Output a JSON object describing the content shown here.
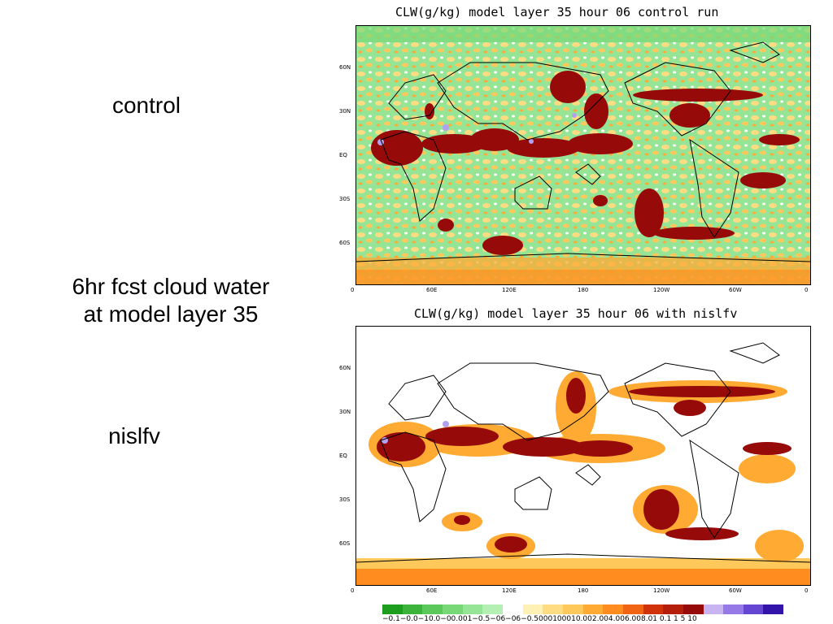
{
  "slide": {
    "label_control": "control",
    "caption_line1": "6hr fcst cloud water",
    "caption_line2": "at model layer 35",
    "label_nislfv": "nislfv"
  },
  "maps": [
    {
      "title": "CLW(g/kg) model layer 35 hour 06 control run"
    },
    {
      "title": "CLW(g/kg) model layer 35 hour 06 with nislfv"
    }
  ],
  "lat_ticks": [
    "60N",
    "30N",
    "EQ",
    "30S",
    "60S"
  ],
  "lon_ticks": [
    "0",
    "60E",
    "120E",
    "180",
    "120W",
    "60W",
    "0"
  ],
  "colorbar": {
    "labels_text": "−0.1−0.0−10.0−00.001−0.5−06−06−0.5000100010.002.004.006.008.01  0.1   1    5    10",
    "colors": [
      "#1e9e1e",
      "#3cb43c",
      "#5ac85a",
      "#78d878",
      "#96e496",
      "#b4f0b4",
      "#ffffff",
      "#fff0b4",
      "#ffdc82",
      "#ffc85a",
      "#ffaa32",
      "#ff8c1e",
      "#f06414",
      "#d2320a",
      "#b41e0a",
      "#960a0a",
      "#c8b4f0",
      "#9678e6",
      "#6446d2",
      "#3214aa"
    ]
  }
}
